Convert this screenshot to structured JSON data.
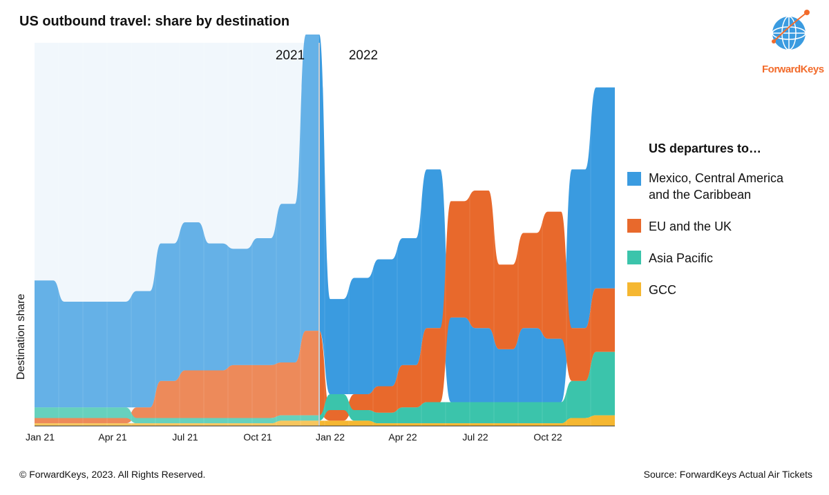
{
  "header": {
    "title": "US outbound travel: share by destination"
  },
  "logo": {
    "text": "ForwardKeys"
  },
  "footer": {
    "copyright": "© ForwardKeys, 2023. All Rights Reserved.",
    "source": "Source: ForwardKeys Actual Air Tickets"
  },
  "chart_data": {
    "type": "area",
    "subtype": "streamgraph",
    "title": "US outbound travel: share by destination",
    "xlabel": "",
    "ylabel": "Destination share",
    "x_ticks": [
      "Jan 21",
      "Apr 21",
      "Jul 21",
      "Oct 21",
      "Jan 22",
      "Apr 22",
      "Jul 22",
      "Oct 22"
    ],
    "period_labels": [
      "2021",
      "2022"
    ],
    "legend": {
      "title": "US departures to…",
      "position": "right"
    },
    "grid": false,
    "x": [
      "Jan 21",
      "Feb 21",
      "Mar 21",
      "Apr 21",
      "May 21",
      "Jun 21",
      "Jul 21",
      "Aug 21",
      "Sep 21",
      "Oct 21",
      "Nov 21",
      "Dec 21",
      "Jan 22",
      "Feb 22",
      "Mar 22",
      "Apr 22",
      "May 22",
      "Jun 22",
      "Jul 22",
      "Aug 22",
      "Sep 22",
      "Oct 22",
      "Nov 22",
      "Dec 22"
    ],
    "series": [
      {
        "name": "Mexico, Central America\nand the Caribbean",
        "color": "#3a9be0",
        "values": [
          12,
          10,
          10,
          10,
          11,
          13,
          14,
          12,
          11,
          12,
          15,
          28,
          9,
          11,
          12,
          12,
          15,
          8,
          7,
          5,
          7,
          6,
          15,
          19
        ]
      },
      {
        "name": "EU and the UK",
        "color": "#e8692c",
        "values": [
          0.5,
          0.5,
          0.5,
          0.5,
          1.0,
          3.5,
          4.5,
          4.5,
          5.0,
          5.0,
          5.0,
          8.0,
          1.0,
          1.5,
          2.5,
          4.0,
          7.0,
          11.0,
          13.0,
          8.0,
          9.0,
          12.0,
          5.0,
          6.0
        ]
      },
      {
        "name": "Asia Pacific",
        "color": "#3bc4ab",
        "values": [
          1.0,
          1.0,
          1.0,
          1.0,
          0.5,
          0.5,
          0.5,
          0.5,
          0.5,
          0.5,
          0.5,
          0.5,
          1.5,
          1.0,
          1.0,
          1.5,
          2.0,
          2.0,
          2.0,
          2.0,
          2.0,
          2.0,
          3.5,
          6.0
        ]
      },
      {
        "name": "GCC",
        "color": "#f5b731",
        "values": [
          0.25,
          0.25,
          0.25,
          0.25,
          0.25,
          0.25,
          0.25,
          0.25,
          0.25,
          0.25,
          0.5,
          0.5,
          0.5,
          0.5,
          0.25,
          0.25,
          0.25,
          0.25,
          0.25,
          0.25,
          0.25,
          0.25,
          0.75,
          1.0
        ]
      }
    ],
    "highlight_region": {
      "from": "Jan 21",
      "to": "Jan 22",
      "label": "2021"
    }
  }
}
